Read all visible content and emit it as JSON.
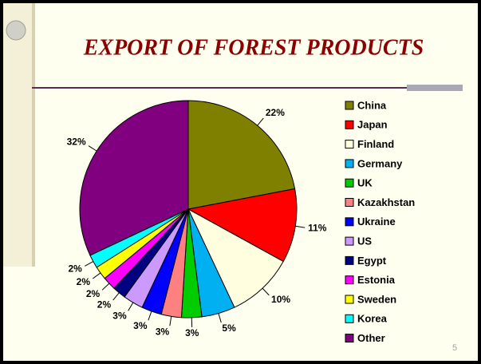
{
  "chart_data": {
    "type": "pie",
    "title": "EXPORT OF FOREST PRODUCTS",
    "categories": [
      "China",
      "Japan",
      "Finland",
      "Germany",
      "UK",
      "Kazakhstan",
      "Ukraine",
      "US",
      "Egypt",
      "Estonia",
      "Sweden",
      "Korea",
      "Other"
    ],
    "values": [
      22,
      11,
      10,
      5,
      3,
      3,
      3,
      3,
      2,
      2,
      2,
      2,
      32
    ],
    "value_labels": [
      "22%",
      "11%",
      "10%",
      "5%",
      "3%",
      "3%",
      "3%",
      "3%",
      "2%",
      "2%",
      "2%",
      "2%",
      "32%"
    ],
    "colors": [
      "#808000",
      "#ff0000",
      "#ffffe0",
      "#00b0f0",
      "#00cc00",
      "#ff8080",
      "#0000ff",
      "#cc99ff",
      "#000080",
      "#ff00ff",
      "#ffff00",
      "#00ffff",
      "#800080"
    ],
    "legend": "right"
  },
  "page_number": "5"
}
